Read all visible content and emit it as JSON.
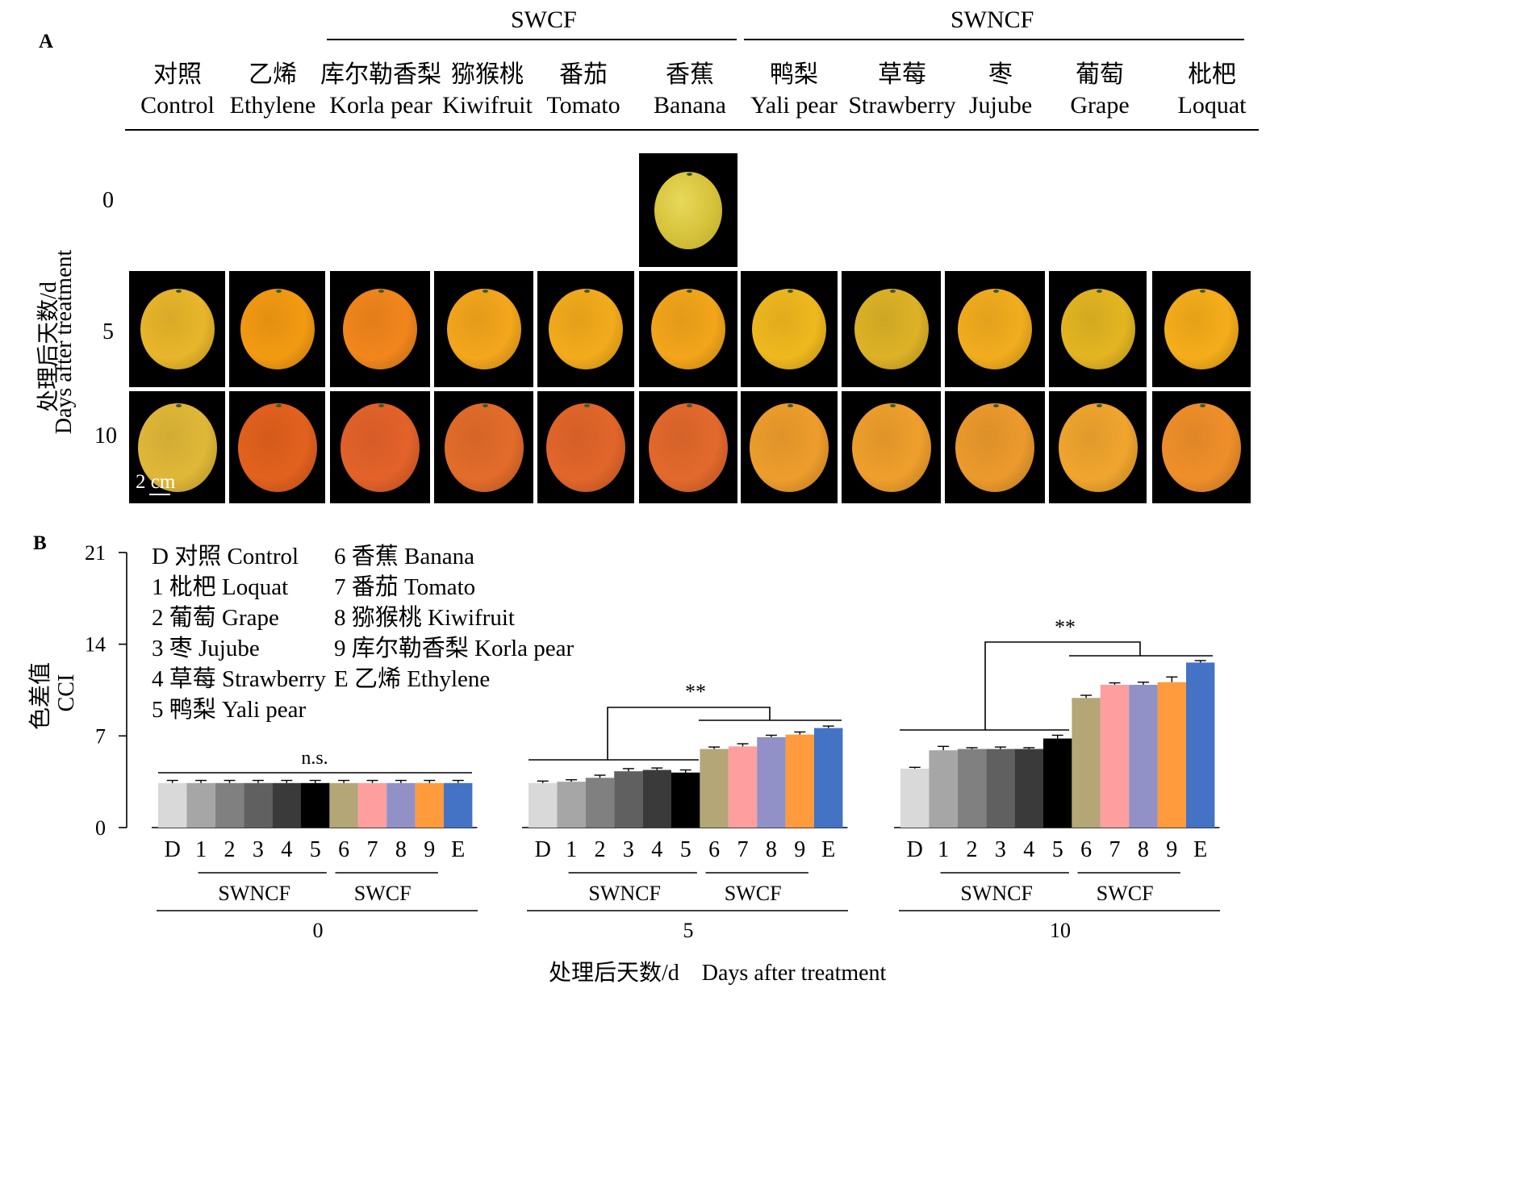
{
  "panel_a": {
    "label": "A",
    "groups": [
      {
        "name": "SWCF"
      },
      {
        "name": "SWNCF"
      }
    ],
    "columns": [
      {
        "zh": "对照",
        "en": "Control",
        "color5": "#e8b62a",
        "color10": "#e0b838"
      },
      {
        "zh": "乙烯",
        "en": "Ethylene",
        "color5": "#f39a12",
        "color10": "#e3611e"
      },
      {
        "zh": "库尔勒香梨",
        "en": "Korla pear",
        "color5": "#f2861c",
        "color10": "#e4622a"
      },
      {
        "zh": "猕猴桃",
        "en": "Kiwifruit",
        "color5": "#f4a61c",
        "color10": "#e36c2a"
      },
      {
        "zh": "番茄",
        "en": "Tomato",
        "color5": "#f3ab1c",
        "color10": "#e2662a"
      },
      {
        "zh": "香蕉",
        "en": "Banana",
        "color5": "#f3a51a",
        "color10": "#e3692c"
      },
      {
        "zh": "鸭梨",
        "en": "Yali pear",
        "color5": "#efb81e",
        "color10": "#ee9d2c"
      },
      {
        "zh": "草莓",
        "en": "Strawberry",
        "color5": "#ddb226",
        "color10": "#ef9f2c"
      },
      {
        "zh": "枣",
        "en": "Jujube",
        "color5": "#f2ad1e",
        "color10": "#ec9a2c"
      },
      {
        "zh": "葡萄",
        "en": "Grape",
        "color5": "#e3b522",
        "color10": "#f0a52e"
      },
      {
        "zh": "枇杷",
        "en": "Loquat",
        "color5": "#f5ad1a",
        "color10": "#ef8f2a"
      }
    ],
    "y_axis_label_zh": "处理后天数/d",
    "y_axis_label_en": "Days after treatment",
    "day_labels": [
      "0",
      "5",
      "10"
    ],
    "day0_color": "#d6c23a",
    "scale_bar": "2 cm"
  },
  "panel_b": {
    "label": "B",
    "legend": [
      "D 对照 Control",
      "1 枇杷 Loquat",
      "2 葡萄 Grape",
      "3 枣 Jujube",
      "4 草莓 Strawberry",
      "5 鸭梨 Yali pear",
      "6 香蕉 Banana",
      "7 番茄 Tomato",
      "8 猕猴桃 Kiwifruit",
      "9 库尔勒香梨 Korla pear",
      "E 乙烯 Ethylene"
    ],
    "ylabel_zh": "色差值",
    "ylabel_en": "CCI",
    "xlabel": "处理后天数/d    Days after treatment",
    "group_labels": {
      "swncf": "SWNCF",
      "swcf": "SWCF"
    },
    "significance": [
      "n.s.",
      "**",
      "**"
    ]
  },
  "chart_data": {
    "type": "bar",
    "categories": [
      "D",
      "1",
      "2",
      "3",
      "4",
      "5",
      "6",
      "7",
      "8",
      "9",
      "E"
    ],
    "bar_colors": [
      "#d9d9d9",
      "#a6a6a6",
      "#808080",
      "#606060",
      "#3a3a3a",
      "#000000",
      "#b4a676",
      "#ff9e9e",
      "#9191c8",
      "#ff9b3d",
      "#4472c4"
    ],
    "ylim": [
      0,
      21
    ],
    "yticks": [
      0,
      7,
      14,
      21
    ],
    "groups": [
      {
        "x": "0",
        "values": [
          3.4,
          3.4,
          3.4,
          3.4,
          3.4,
          3.4,
          3.4,
          3.4,
          3.4,
          3.4,
          3.4
        ],
        "errors": [
          0.2,
          0.2,
          0.2,
          0.2,
          0.2,
          0.2,
          0.2,
          0.2,
          0.2,
          0.2,
          0.2
        ],
        "significance": "n.s."
      },
      {
        "x": "5",
        "values": [
          3.4,
          3.5,
          3.8,
          4.3,
          4.4,
          4.2,
          6.0,
          6.2,
          6.9,
          7.1,
          7.6
        ],
        "errors": [
          0.15,
          0.15,
          0.2,
          0.2,
          0.15,
          0.2,
          0.15,
          0.2,
          0.15,
          0.2,
          0.15
        ],
        "significance": "**"
      },
      {
        "x": "10",
        "values": [
          4.5,
          5.9,
          6.0,
          6.0,
          6.0,
          6.8,
          9.9,
          10.9,
          10.9,
          11.1,
          12.6
        ],
        "errors": [
          0.1,
          0.3,
          0.1,
          0.15,
          0.1,
          0.25,
          0.2,
          0.15,
          0.2,
          0.4,
          0.15
        ],
        "significance": "**"
      }
    ]
  }
}
